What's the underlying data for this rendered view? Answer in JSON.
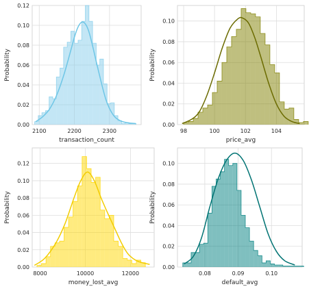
{
  "chart_data": [
    {
      "type": "histogram",
      "xlabel": "transaction_count",
      "ylabel": "Probability",
      "xlim": [
        2080,
        2390
      ],
      "ylim": [
        0,
        0.12
      ],
      "xticks": [
        "2100",
        "2200",
        "2300"
      ],
      "xtick_values": [
        2100,
        2200,
        2300
      ],
      "yticks": [
        "0.00",
        "0.02",
        "0.04",
        "0.06",
        "0.08",
        "0.10",
        "0.12"
      ],
      "ytick_values": [
        0,
        0.02,
        0.04,
        0.06,
        0.08,
        0.1,
        0.12
      ],
      "bin_start": 2087,
      "bin_width": 10.3,
      "values": [
        0.003,
        0.009,
        0.012,
        0.014,
        0.028,
        0.026,
        0.048,
        0.057,
        0.078,
        0.083,
        0.094,
        0.082,
        0.085,
        0.104,
        0.12,
        0.104,
        0.082,
        0.06,
        0.066,
        0.041,
        0.021,
        0.022,
        0.009,
        0.004,
        0.001,
        0.002,
        0.001,
        0.001
      ],
      "kde": [
        [
          2090,
          0.003
        ],
        [
          2110,
          0.008
        ],
        [
          2130,
          0.016
        ],
        [
          2150,
          0.03
        ],
        [
          2170,
          0.05
        ],
        [
          2190,
          0.075
        ],
        [
          2200,
          0.088
        ],
        [
          2210,
          0.098
        ],
        [
          2220,
          0.103
        ],
        [
          2230,
          0.102
        ],
        [
          2240,
          0.095
        ],
        [
          2250,
          0.082
        ],
        [
          2270,
          0.052
        ],
        [
          2290,
          0.025
        ],
        [
          2310,
          0.01
        ],
        [
          2330,
          0.004
        ],
        [
          2350,
          0.002
        ],
        [
          2375,
          0.001
        ]
      ],
      "grid": true,
      "fill_color": "#87ceeb",
      "line_color": "#6ec6e6"
    },
    {
      "type": "histogram",
      "xlabel": "price_avg",
      "ylabel": "Probability",
      "xlim": [
        97.6,
        105.8
      ],
      "ylim": [
        0,
        0.115
      ],
      "xticks": [
        "98",
        "100",
        "102",
        "104"
      ],
      "xtick_values": [
        98,
        100,
        102,
        104
      ],
      "yticks": [
        "0.00",
        "0.02",
        "0.04",
        "0.06",
        "0.08",
        "0.10"
      ],
      "ytick_values": [
        0,
        0.02,
        0.04,
        0.06,
        0.08,
        0.1
      ],
      "bin_start": 98.0,
      "bin_width": 0.31,
      "values": [
        0.002,
        0.003,
        0.006,
        0.012,
        0.016,
        0.019,
        0.031,
        0.042,
        0.06,
        0.075,
        0.085,
        0.092,
        0.112,
        0.108,
        0.107,
        0.104,
        0.088,
        0.077,
        0.058,
        0.05,
        0.022,
        0.015,
        0.016,
        0.005,
        0.002,
        0.003
      ],
      "kde": [
        [
          97.9,
          0.001
        ],
        [
          98.5,
          0.005
        ],
        [
          99.0,
          0.012
        ],
        [
          99.5,
          0.028
        ],
        [
          100.0,
          0.05
        ],
        [
          100.5,
          0.074
        ],
        [
          101.0,
          0.093
        ],
        [
          101.5,
          0.102
        ],
        [
          101.8,
          0.103
        ],
        [
          102.2,
          0.098
        ],
        [
          102.6,
          0.084
        ],
        [
          103.0,
          0.065
        ],
        [
          103.5,
          0.04
        ],
        [
          104.0,
          0.02
        ],
        [
          104.5,
          0.008
        ],
        [
          105.0,
          0.003
        ],
        [
          105.5,
          0.001
        ]
      ],
      "grid": true,
      "fill_color": "#808000",
      "line_color": "#6b6b00"
    },
    {
      "type": "histogram",
      "xlabel": "money_lost_avg",
      "ylabel": "Probability",
      "xlim": [
        7650,
        13050
      ],
      "ylim": [
        0,
        0.138
      ],
      "xticks": [
        "8000",
        "10000",
        "12000"
      ],
      "xtick_values": [
        8000,
        10000,
        12000
      ],
      "yticks": [
        "0.00",
        "0.02",
        "0.04",
        "0.06",
        "0.08",
        "0.10",
        "0.12"
      ],
      "ytick_values": [
        0,
        0.02,
        0.04,
        0.06,
        0.08,
        0.1,
        0.12
      ],
      "bin_start": 7860,
      "bin_width": 200,
      "values": [
        0.002,
        0.004,
        0.012,
        0.024,
        0.028,
        0.03,
        0.046,
        0.058,
        0.076,
        0.094,
        0.128,
        0.114,
        0.098,
        0.104,
        0.066,
        0.056,
        0.06,
        0.03,
        0.024,
        0.01,
        0.008,
        0.004,
        0.008,
        0.005
      ],
      "kde": [
        [
          7750,
          0.002
        ],
        [
          8200,
          0.01
        ],
        [
          8700,
          0.028
        ],
        [
          9100,
          0.05
        ],
        [
          9500,
          0.08
        ],
        [
          9800,
          0.1
        ],
        [
          10100,
          0.11
        ],
        [
          10400,
          0.1
        ],
        [
          10700,
          0.08
        ],
        [
          11000,
          0.062
        ],
        [
          11300,
          0.045
        ],
        [
          11600,
          0.028
        ],
        [
          11900,
          0.015
        ],
        [
          12300,
          0.007
        ],
        [
          12850,
          0.003
        ]
      ],
      "grid": true,
      "fill_color": "#ffd700",
      "line_color": "#f2cc00"
    },
    {
      "type": "histogram",
      "xlabel": "default_avg",
      "ylabel": "Probability",
      "xlim": [
        0.0718,
        0.1092
      ],
      "ylim": [
        0,
        0.115
      ],
      "xticks": [
        "0.08",
        "0.09",
        "0.10"
      ],
      "xtick_values": [
        0.08,
        0.09,
        0.1
      ],
      "yticks": [
        "0.00",
        "0.02",
        "0.04",
        "0.06",
        "0.08",
        "0.10"
      ],
      "ytick_values": [
        0,
        0.02,
        0.04,
        0.06,
        0.08,
        0.1
      ],
      "bin_start": 0.0734,
      "bin_width": 0.00125,
      "values": [
        0.004,
        0.004,
        0.014,
        0.014,
        0.022,
        0.023,
        0.052,
        0.078,
        0.085,
        0.092,
        0.104,
        0.098,
        0.1,
        0.074,
        0.05,
        0.038,
        0.025,
        0.016,
        0.011,
        0.004,
        0.006,
        0.003,
        0.002,
        0.002,
        0.001,
        0.001,
        0.001,
        0.001,
        0.001
      ],
      "kde": [
        [
          0.0738,
          0.003
        ],
        [
          0.0765,
          0.01
        ],
        [
          0.079,
          0.028
        ],
        [
          0.0815,
          0.058
        ],
        [
          0.084,
          0.085
        ],
        [
          0.0865,
          0.103
        ],
        [
          0.089,
          0.11
        ],
        [
          0.0915,
          0.103
        ],
        [
          0.094,
          0.084
        ],
        [
          0.0965,
          0.058
        ],
        [
          0.099,
          0.032
        ],
        [
          0.1015,
          0.015
        ],
        [
          0.104,
          0.006
        ],
        [
          0.107,
          0.002
        ]
      ],
      "grid": true,
      "fill_color": "#008080",
      "line_color": "#007373"
    }
  ]
}
